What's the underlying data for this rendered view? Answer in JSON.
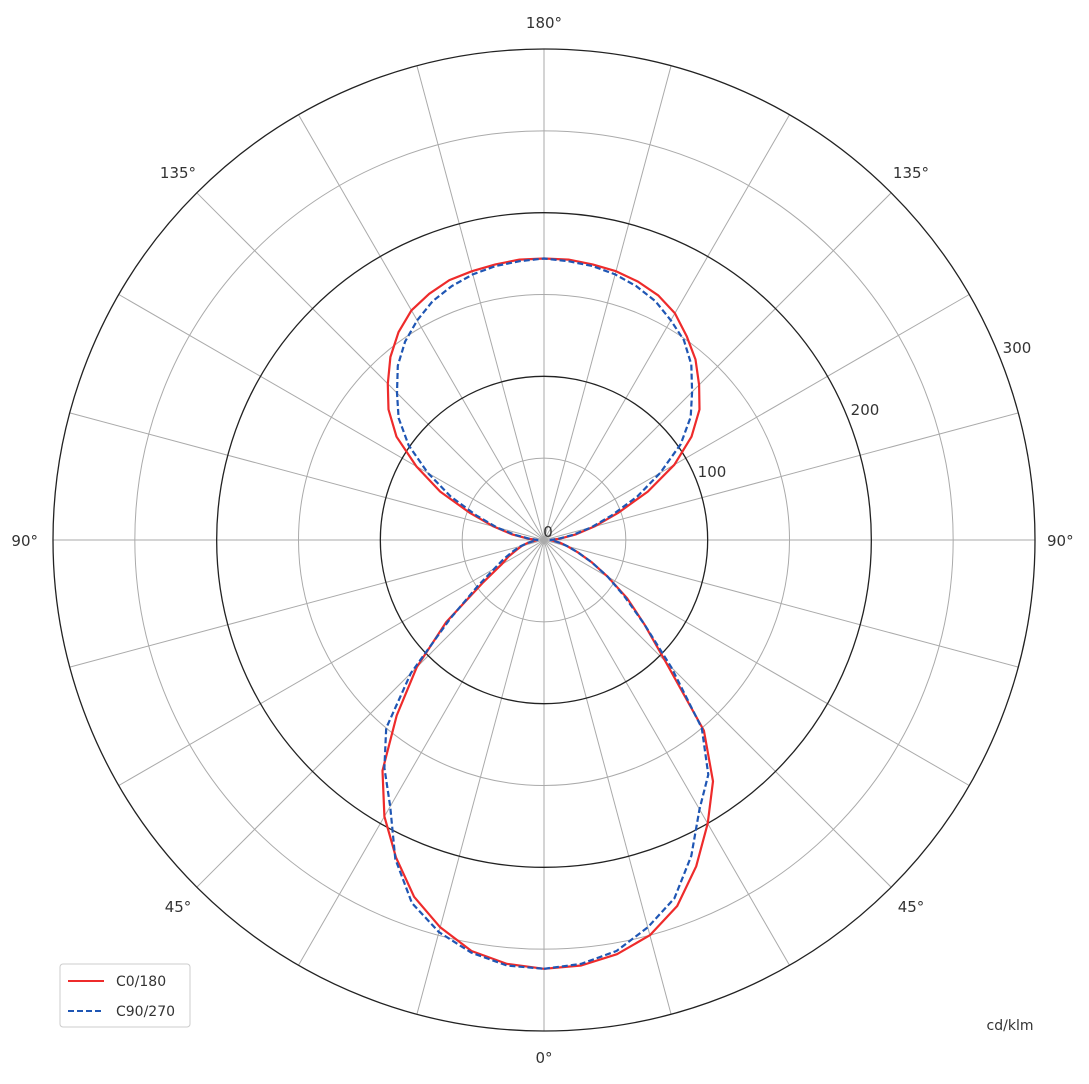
{
  "chart_data": {
    "type": "polar-line",
    "unit_label": "cd/klm",
    "radial_range": [
      0,
      300
    ],
    "radial_ticks": [
      0,
      100,
      200,
      300
    ],
    "radial_minor_rings": [
      50,
      150,
      250
    ],
    "angle_step_deg": 15,
    "angle_labels": {
      "bottom": "0°",
      "lower_left": "45°",
      "lower_right": "45°",
      "left": "90°",
      "right": "90°",
      "upper_left": "135°",
      "upper_right": "135°",
      "top": "180°"
    },
    "grid": true,
    "legend_position": "bottom-left",
    "gamma_deg": [
      0,
      5,
      10,
      15,
      20,
      25,
      30,
      35,
      40,
      45,
      50,
      55,
      60,
      65,
      70,
      75,
      80,
      85,
      90,
      95,
      100,
      105,
      110,
      115,
      120,
      125,
      130,
      135,
      140,
      145,
      150,
      155,
      160,
      165,
      170,
      175,
      180
    ],
    "series": [
      {
        "name": "C0/180",
        "color": "#ee2b2b",
        "style": "solid",
        "right_half": [
          262,
          261,
          257,
          250,
          238,
          220,
          200,
          180,
          152,
          105,
          80,
          62,
          45,
          32,
          22,
          15,
          10,
          6,
          4,
          10,
          20,
          32,
          48,
          70,
          92,
          110,
          124,
          134,
          144,
          152,
          160,
          165,
          168,
          170,
          171,
          172,
          172
        ],
        "left_half": [
          262,
          260,
          255,
          245,
          232,
          214,
          195,
          172,
          140,
          110,
          78,
          46,
          30,
          24,
          18,
          14,
          10,
          6,
          4,
          10,
          20,
          32,
          48,
          70,
          90,
          110,
          124,
          135,
          146,
          155,
          162,
          166,
          169,
          170,
          171,
          172,
          172
        ]
      },
      {
        "name": "C90/270",
        "color": "#1f56b4",
        "style": "dashed",
        "right_half": [
          262,
          260,
          255,
          245,
          233,
          213,
          190,
          175,
          150,
          110,
          80,
          60,
          45,
          32,
          22,
          15,
          10,
          6,
          4,
          9,
          18,
          30,
          44,
          63,
          82,
          102,
          117,
          128,
          140,
          149,
          155,
          161,
          165,
          168,
          170,
          171,
          172
        ],
        "left_half": [
          262,
          261,
          256,
          248,
          236,
          215,
          188,
          170,
          150,
          115,
          75,
          50,
          35,
          27,
          20,
          15,
          10,
          6,
          4,
          9,
          18,
          30,
          44,
          63,
          82,
          101,
          116,
          127,
          139,
          148,
          155,
          161,
          165,
          168,
          170,
          171,
          172
        ]
      }
    ]
  }
}
